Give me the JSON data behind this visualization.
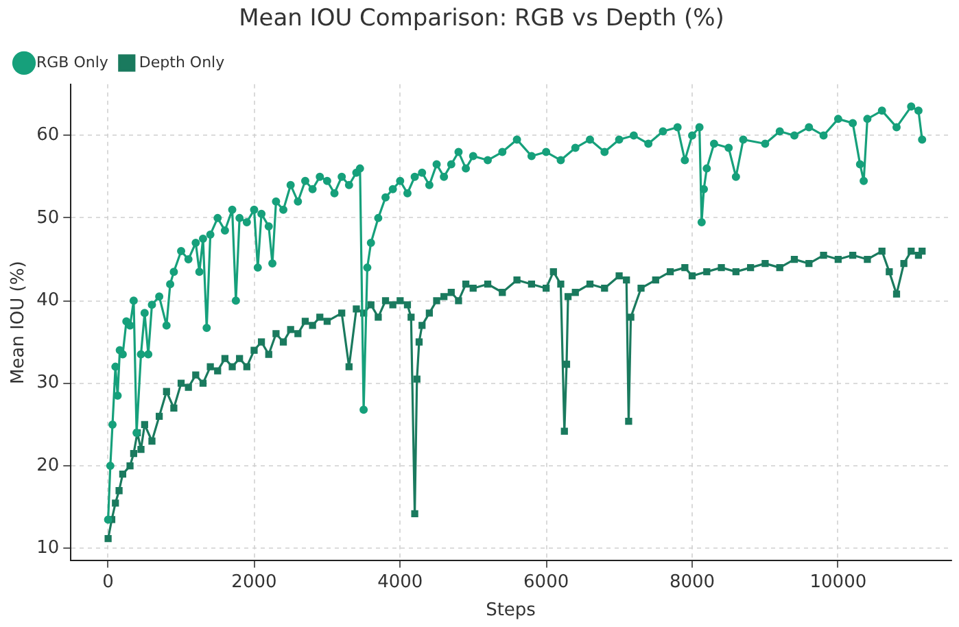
{
  "chart_data": {
    "type": "line",
    "title": "Mean IOU Comparison: RGB vs Depth (%)",
    "xlabel": "Steps",
    "ylabel": "Mean IOU (%)",
    "xlim": [
      -520,
      11550
    ],
    "ylim": [
      8.5,
      66.2
    ],
    "xticks": [
      0,
      2000,
      4000,
      6000,
      8000,
      10000
    ],
    "yticks": [
      10,
      20,
      30,
      40,
      50,
      60
    ],
    "grid": true,
    "legend": "top left",
    "line_style": "solid",
    "series": [
      {
        "name": "RGB Only",
        "color": "#16a07b",
        "marker": "circle",
        "x": [
          0,
          30,
          60,
          100,
          130,
          160,
          200,
          250,
          300,
          350,
          390,
          450,
          500,
          550,
          600,
          700,
          800,
          850,
          900,
          1000,
          1100,
          1200,
          1250,
          1300,
          1350,
          1400,
          1500,
          1600,
          1700,
          1750,
          1800,
          1900,
          2000,
          2050,
          2100,
          2200,
          2250,
          2300,
          2400,
          2500,
          2600,
          2700,
          2800,
          2900,
          3000,
          3100,
          3200,
          3300,
          3400,
          3450,
          3500,
          3550,
          3600,
          3700,
          3800,
          3900,
          4000,
          4100,
          4200,
          4300,
          4400,
          4500,
          4600,
          4700,
          4800,
          4900,
          5000,
          5200,
          5400,
          5600,
          5800,
          6000,
          6200,
          6400,
          6600,
          6800,
          7000,
          7200,
          7400,
          7600,
          7800,
          7900,
          8000,
          8100,
          8130,
          8160,
          8200,
          8300,
          8500,
          8600,
          8700,
          9000,
          9200,
          9400,
          9600,
          9800,
          10000,
          10200,
          10300,
          10350,
          10400,
          10600,
          10800,
          11000,
          11100,
          11150
        ],
        "values": [
          13.5,
          20,
          25,
          32,
          28.5,
          34,
          33.5,
          37.5,
          37,
          40,
          24,
          33.5,
          38.5,
          33.5,
          39.5,
          40.5,
          37,
          42,
          43.5,
          46,
          45,
          47,
          43.5,
          47.5,
          36.7,
          48,
          50,
          48.5,
          51,
          40,
          50,
          49.5,
          51,
          44,
          50.5,
          49,
          44.5,
          52,
          51,
          54,
          52,
          54.5,
          53.5,
          55,
          54.5,
          53,
          55,
          54,
          55.5,
          56,
          26.8,
          44,
          47,
          50,
          52.5,
          53.5,
          54.5,
          53,
          55,
          55.5,
          54,
          56.5,
          55,
          56.5,
          58,
          56,
          57.5,
          57,
          58,
          59.5,
          57.5,
          58,
          57,
          58.5,
          59.5,
          58,
          59.5,
          60,
          59,
          60.5,
          61,
          57,
          60,
          61,
          49.5,
          53.5,
          56,
          59,
          58.5,
          55,
          59.5,
          59,
          60.5,
          60,
          61,
          60,
          62,
          61.5,
          56.5,
          54.5,
          62,
          63,
          61,
          63.5,
          63,
          59.5
        ]
      },
      {
        "name": "Depth Only",
        "color": "#1a7a5e",
        "marker": "square",
        "x": [
          0,
          50,
          100,
          150,
          200,
          300,
          350,
          400,
          450,
          500,
          600,
          700,
          800,
          900,
          1000,
          1100,
          1200,
          1300,
          1400,
          1500,
          1600,
          1700,
          1800,
          1900,
          2000,
          2100,
          2200,
          2300,
          2400,
          2500,
          2600,
          2700,
          2800,
          2900,
          3000,
          3200,
          3300,
          3400,
          3500,
          3600,
          3700,
          3800,
          3900,
          4000,
          4100,
          4150,
          4200,
          4230,
          4260,
          4300,
          4400,
          4500,
          4600,
          4700,
          4800,
          4900,
          5000,
          5200,
          5400,
          5600,
          5800,
          6000,
          6100,
          6200,
          6250,
          6280,
          6300,
          6400,
          6600,
          6800,
          7000,
          7100,
          7130,
          7160,
          7300,
          7500,
          7700,
          7900,
          8000,
          8200,
          8400,
          8600,
          8800,
          9000,
          9200,
          9400,
          9600,
          9800,
          10000,
          10200,
          10400,
          10600,
          10700,
          10800,
          10900,
          11000,
          11100,
          11150
        ],
        "values": [
          11.2,
          13.5,
          15.5,
          17,
          19,
          20,
          21.5,
          24,
          22,
          25,
          23,
          26,
          29,
          27,
          30,
          29.5,
          31,
          30,
          32,
          31.5,
          33,
          32,
          33,
          32,
          34,
          35,
          33.5,
          36,
          35,
          36.5,
          36,
          37.5,
          37,
          38,
          37.5,
          38.5,
          32,
          39,
          38.5,
          39.5,
          38,
          40,
          39.5,
          40,
          39.5,
          38,
          14.2,
          30.5,
          35,
          37,
          38.5,
          40,
          40.5,
          41,
          40,
          42,
          41.5,
          42,
          41,
          42.5,
          42,
          41.5,
          43.5,
          42,
          24.2,
          32.3,
          40.5,
          41,
          42,
          41.5,
          43,
          42.5,
          25.4,
          38,
          41.5,
          42.5,
          43.5,
          44,
          43,
          43.5,
          44,
          43.5,
          44,
          44.5,
          44,
          45,
          44.5,
          45.5,
          45,
          45.5,
          45,
          46,
          43.5,
          40.8,
          44.5,
          46,
          45.5,
          46
        ]
      }
    ]
  }
}
